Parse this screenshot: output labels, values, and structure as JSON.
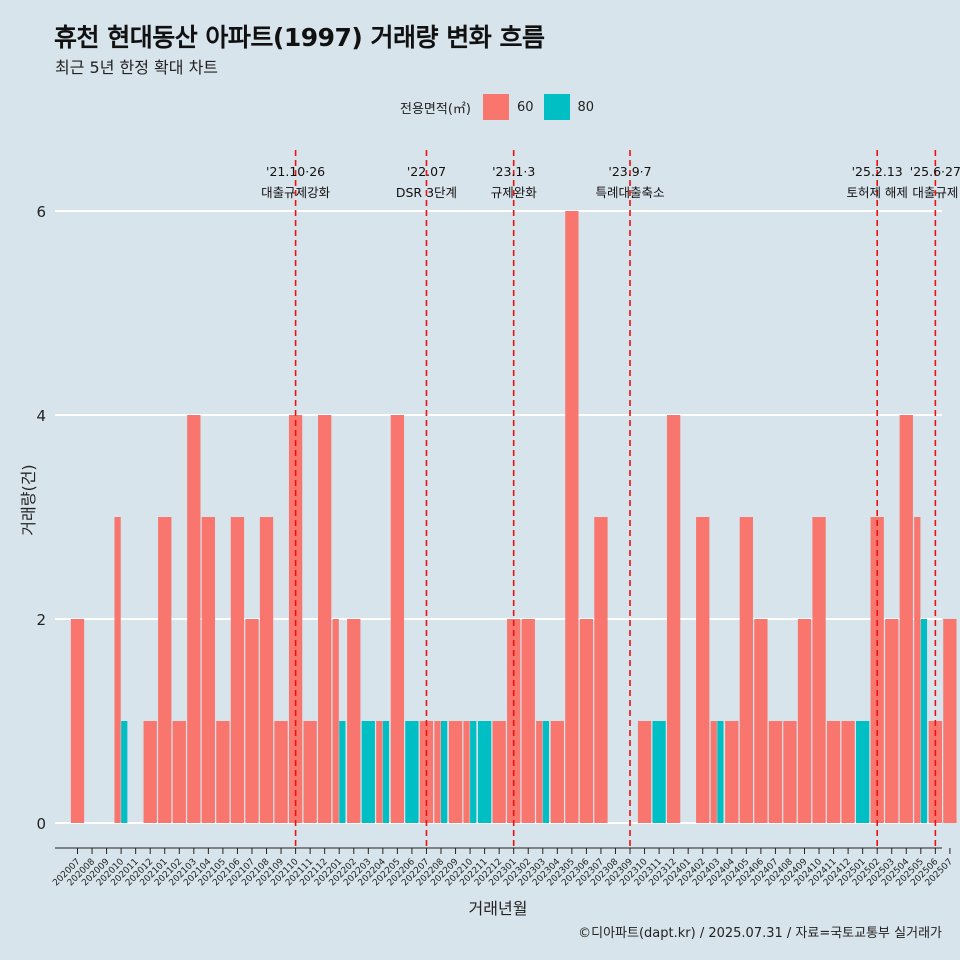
{
  "title": "휴천 현대동산 아파트(1997) 거래량 변화 흐름",
  "subtitle": "최근 5년 한정 확대 차트",
  "caption": "©디아파트(dapt.kr) / 2025.07.31 / 자료=국토교통부 실거래가",
  "legend": {
    "title": "전용면적(㎡)",
    "items": [
      {
        "label": "60",
        "color": "#f8766d"
      },
      {
        "label": "80",
        "color": "#00bfc4"
      }
    ]
  },
  "chart_data": {
    "type": "bar",
    "xlabel": "거래년월",
    "ylabel": "거래량(건)",
    "ylim": [
      0,
      6
    ],
    "yticks": [
      0,
      2,
      4,
      6
    ],
    "categories": [
      "202007",
      "202008",
      "202009",
      "202010",
      "202011",
      "202012",
      "202101",
      "202102",
      "202103",
      "202104",
      "202105",
      "202106",
      "202107",
      "202108",
      "202109",
      "202110",
      "202111",
      "202112",
      "202201",
      "202202",
      "202203",
      "202204",
      "202205",
      "202206",
      "202207",
      "202208",
      "202209",
      "202210",
      "202211",
      "202212",
      "202301",
      "202302",
      "202303",
      "202304",
      "202305",
      "202306",
      "202307",
      "202308",
      "202309",
      "202310",
      "202311",
      "202312",
      "202401",
      "202402",
      "202403",
      "202404",
      "202405",
      "202406",
      "202407",
      "202408",
      "202409",
      "202410",
      "202411",
      "202412",
      "202501",
      "202502",
      "202503",
      "202504",
      "202505",
      "202506",
      "202507"
    ],
    "series": [
      {
        "name": "60",
        "color": "#f8766d",
        "values": [
          2,
          0,
          0,
          3,
          0,
          1,
          3,
          1,
          4,
          3,
          1,
          3,
          2,
          3,
          1,
          4,
          1,
          4,
          2,
          2,
          0,
          1,
          4,
          0,
          1,
          1,
          1,
          1,
          0,
          1,
          2,
          2,
          1,
          1,
          6,
          2,
          3,
          0,
          0,
          1,
          0,
          4,
          0,
          3,
          1,
          1,
          3,
          2,
          1,
          1,
          2,
          3,
          1,
          1,
          0,
          3,
          2,
          4,
          3,
          1,
          2
        ]
      },
      {
        "name": "80",
        "color": "#00bfc4",
        "values": [
          0,
          0,
          0,
          1,
          0,
          0,
          0,
          0,
          0,
          0,
          0,
          0,
          0,
          0,
          0,
          0,
          0,
          0,
          1,
          0,
          1,
          1,
          0,
          1,
          0,
          1,
          0,
          1,
          1,
          0,
          0,
          0,
          1,
          0,
          0,
          0,
          0,
          0,
          0,
          0,
          1,
          0,
          0,
          0,
          1,
          0,
          0,
          0,
          0,
          0,
          0,
          0,
          0,
          0,
          1,
          0,
          0,
          0,
          2,
          0,
          0
        ]
      }
    ],
    "annotations": [
      {
        "category": "202110",
        "line1": "'21.10·26",
        "line2": "대출규제강화"
      },
      {
        "category": "202207",
        "line1": "'22.07",
        "line2": "DSR 3단계"
      },
      {
        "category": "202301",
        "line1": "'23.1·3",
        "line2": "규제완화"
      },
      {
        "category": "202309",
        "line1": "'23.9·7",
        "line2": "특례대출축소"
      },
      {
        "category": "202502",
        "line1": "'25.2.13",
        "line2": "토허제 해제"
      },
      {
        "category": "202506",
        "line1": "'25.6·27",
        "line2": "대출규제"
      }
    ]
  }
}
